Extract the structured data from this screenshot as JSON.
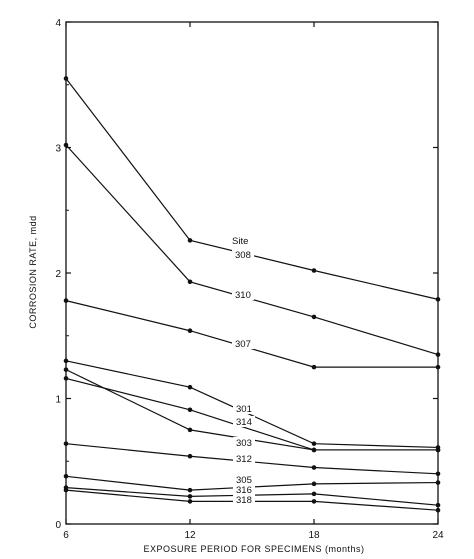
{
  "chart_data": {
    "type": "line",
    "title": "",
    "xlabel": "EXPOSURE PERIOD FOR SPECIMENS (months)",
    "ylabel": "CORROSION RATE, mdd",
    "x": [
      6,
      12,
      18,
      24
    ],
    "xticks": [
      "6",
      "12",
      "18",
      "24"
    ],
    "yticks": [
      "0",
      "1",
      "2",
      "3",
      "4"
    ],
    "xlim": [
      6,
      24
    ],
    "ylim": [
      0,
      4
    ],
    "grid": false,
    "annotation": "Site",
    "series": [
      {
        "name": "308",
        "values": [
          3.55,
          2.26,
          2.02,
          1.79
        ]
      },
      {
        "name": "310",
        "values": [
          3.02,
          1.93,
          1.65,
          1.35
        ]
      },
      {
        "name": "307",
        "values": [
          1.78,
          1.54,
          1.25,
          1.25
        ]
      },
      {
        "name": "301",
        "values": [
          1.3,
          1.09,
          0.64,
          0.61
        ]
      },
      {
        "name": "314",
        "values": [
          1.16,
          0.91,
          0.59,
          0.59
        ]
      },
      {
        "name": "303",
        "values": [
          1.23,
          0.75,
          0.59,
          0.59
        ]
      },
      {
        "name": "312",
        "values": [
          0.64,
          0.54,
          0.45,
          0.4
        ]
      },
      {
        "name": "305",
        "values": [
          0.38,
          0.27,
          0.32,
          0.33
        ]
      },
      {
        "name": "316",
        "values": [
          0.29,
          0.22,
          0.24,
          0.15
        ]
      },
      {
        "name": "318",
        "values": [
          0.27,
          0.18,
          0.18,
          0.11
        ]
      }
    ]
  }
}
